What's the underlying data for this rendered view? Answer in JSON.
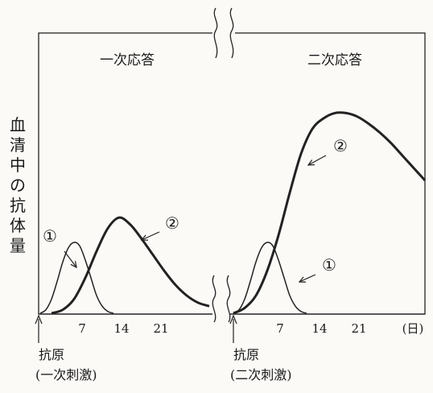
{
  "chart_data": {
    "type": "line",
    "ylabel": "血清中の抗体量",
    "xunit": "(日)",
    "panels": [
      {
        "title": "一次応答",
        "xticks": [
          "7",
          "14",
          "21"
        ],
        "antigen_label": "抗原",
        "stimulus_label": "(一次刺激)",
        "series": [
          {
            "name": "①",
            "x": [
              0,
              1,
              2,
              3,
              4,
              5,
              6,
              7,
              8,
              9,
              10,
              11,
              12,
              13
            ],
            "y": [
              0,
              2,
              8,
              18,
              29,
              37,
              40,
              38,
              30,
              20,
              10,
              4,
              1,
              0
            ]
          },
          {
            "name": "②",
            "x": [
              2,
              4,
              6,
              8,
              10,
              12,
              14,
              16,
              18,
              20,
              22,
              24,
              26,
              28,
              30
            ],
            "y": [
              0,
              2,
              8,
              20,
              35,
              48,
              54,
              50,
              42,
              33,
              24,
              16,
              10,
              6,
              4
            ]
          }
        ]
      },
      {
        "title": "二次応答",
        "xticks": [
          "7",
          "14",
          "21"
        ],
        "antigen_label": "抗原",
        "stimulus_label": "(二次刺激)",
        "series": [
          {
            "name": "①",
            "x": [
              0,
              1,
              2,
              3,
              4,
              5,
              6,
              7,
              8,
              9,
              10,
              11,
              12,
              13
            ],
            "y": [
              0,
              2,
              8,
              18,
              29,
              37,
              40,
              38,
              30,
              20,
              10,
              4,
              1,
              0
            ]
          },
          {
            "name": "②",
            "x": [
              0,
              2,
              4,
              6,
              8,
              10,
              12,
              14,
              16,
              18,
              20,
              22,
              24,
              26,
              28,
              30,
              32,
              34
            ],
            "y": [
              0,
              3,
              10,
              24,
              44,
              68,
              90,
              104,
              110,
              113,
              113,
              111,
              107,
              102,
              96,
              89,
              82,
              75
            ]
          }
        ]
      }
    ]
  }
}
